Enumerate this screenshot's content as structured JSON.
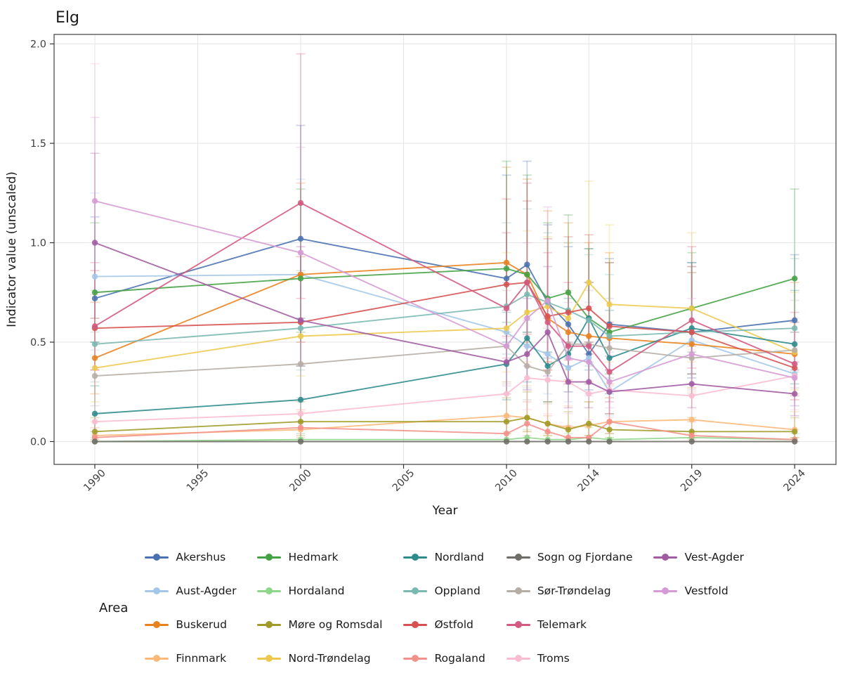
{
  "chart_data": {
    "type": "line",
    "title": "Elg",
    "xlabel": "Year",
    "ylabel": "Indicator value (unscaled)",
    "legend_title": "Area",
    "legend_position": "bottom",
    "grid": true,
    "xlim": [
      1988,
      2026
    ],
    "ylim": [
      -0.1,
      2.05
    ],
    "x_ticks": [
      1990,
      1995,
      2000,
      2005,
      2010,
      2014,
      2019,
      2024
    ],
    "y_ticks": [
      "0.0",
      "0.5",
      "1.0",
      "1.5",
      "2.0"
    ],
    "years": [
      1990,
      2000,
      2010,
      2011,
      2012,
      2013,
      2014,
      2015,
      2019,
      2024
    ],
    "error_bars": true,
    "colors": {
      "panel_border": "#4d4d4d",
      "gridline": "#e6e6e6",
      "tick_text": "#404040",
      "title_text": "#1a1a1a"
    },
    "series": [
      {
        "name": "Akershus",
        "color": "#4a72b0",
        "values": [
          0.72,
          1.02,
          0.82,
          0.89,
          0.7,
          0.59,
          0.44,
          0.59,
          0.55,
          0.61
        ],
        "err_lo": [
          0.5,
          0.62,
          0.5,
          0.55,
          0.42,
          0.38,
          0.26,
          0.36,
          0.32,
          0.36
        ],
        "err_hi": [
          1.13,
          1.59,
          1.34,
          1.41,
          1.09,
          0.98,
          0.8,
          0.92,
          0.9,
          0.94
        ]
      },
      {
        "name": "Aust-Agder",
        "color": "#a3c7e8",
        "values": [
          0.83,
          0.84,
          0.55,
          0.48,
          0.44,
          0.37,
          0.42,
          0.25,
          0.51,
          0.34
        ],
        "err_lo": [
          0.46,
          0.5,
          0.3,
          0.27,
          0.24,
          0.2,
          0.23,
          0.13,
          0.29,
          0.18
        ],
        "err_hi": [
          1.25,
          1.32,
          0.9,
          0.8,
          0.74,
          0.64,
          0.7,
          0.45,
          0.85,
          0.6
        ]
      },
      {
        "name": "Buskerud",
        "color": "#e8821e",
        "values": [
          0.42,
          0.84,
          0.9,
          0.84,
          0.62,
          0.55,
          0.53,
          0.52,
          0.49,
          0.44
        ],
        "err_lo": [
          0.24,
          0.5,
          0.55,
          0.5,
          0.36,
          0.31,
          0.3,
          0.29,
          0.27,
          0.24
        ],
        "err_hi": [
          0.7,
          1.3,
          1.38,
          1.32,
          1.16,
          1.1,
          1.0,
          0.95,
          0.85,
          0.8
        ]
      },
      {
        "name": "Finnmark",
        "color": "#fbb878",
        "values": [
          0.03,
          0.06,
          0.13,
          0.12,
          0.09,
          0.07,
          0.08,
          0.1,
          0.11,
          0.06
        ],
        "err_lo": [
          0.0,
          0.01,
          0.05,
          0.05,
          0.03,
          0.02,
          0.03,
          0.04,
          0.04,
          0.02
        ],
        "err_hi": [
          0.1,
          0.15,
          0.3,
          0.28,
          0.2,
          0.18,
          0.2,
          0.22,
          0.25,
          0.15
        ]
      },
      {
        "name": "Hedmark",
        "color": "#44a244",
        "values": [
          0.75,
          0.82,
          0.87,
          0.84,
          0.72,
          0.75,
          0.62,
          0.55,
          0.67,
          0.82
        ],
        "err_lo": [
          0.5,
          0.55,
          0.6,
          0.55,
          0.45,
          0.46,
          0.4,
          0.34,
          0.45,
          0.55
        ],
        "err_hi": [
          1.1,
          1.27,
          1.41,
          1.34,
          1.1,
          1.14,
          0.97,
          0.9,
          0.95,
          1.27
        ]
      },
      {
        "name": "Hordaland",
        "color": "#8ed68a",
        "values": [
          0.0,
          0.01,
          0.01,
          0.02,
          0.01,
          0.01,
          0.02,
          0.01,
          0.02,
          0.01
        ],
        "err_lo": [
          0.0,
          0.0,
          0.0,
          0.0,
          0.0,
          0.0,
          0.0,
          0.0,
          0.0,
          0.0
        ],
        "err_hi": [
          0.02,
          0.04,
          0.04,
          0.06,
          0.04,
          0.04,
          0.07,
          0.04,
          0.05,
          0.04
        ]
      },
      {
        "name": "Møre og Romsdal",
        "color": "#a09b28",
        "values": [
          0.05,
          0.1,
          0.1,
          0.12,
          0.09,
          0.06,
          0.09,
          0.06,
          0.05,
          0.05
        ],
        "err_lo": [
          0.01,
          0.03,
          0.04,
          0.05,
          0.03,
          0.02,
          0.03,
          0.02,
          0.02,
          0.02
        ],
        "err_hi": [
          0.12,
          0.2,
          0.22,
          0.25,
          0.2,
          0.15,
          0.2,
          0.14,
          0.12,
          0.12
        ]
      },
      {
        "name": "Nord-Trøndelag",
        "color": "#ecc94e",
        "values": [
          0.37,
          0.53,
          0.57,
          0.65,
          0.68,
          0.62,
          0.8,
          0.69,
          0.67,
          0.45
        ],
        "err_lo": [
          0.2,
          0.33,
          0.35,
          0.4,
          0.4,
          0.36,
          0.5,
          0.4,
          0.4,
          0.26
        ],
        "err_hi": [
          0.62,
          0.85,
          0.95,
          1.06,
          1.03,
          1.0,
          1.31,
          1.09,
          1.05,
          0.75
        ]
      },
      {
        "name": "Nordland",
        "color": "#2e8b8b",
        "values": [
          0.14,
          0.21,
          0.39,
          0.52,
          0.38,
          0.44,
          0.62,
          0.42,
          0.57,
          0.49
        ],
        "err_lo": [
          0.05,
          0.1,
          0.21,
          0.3,
          0.2,
          0.25,
          0.36,
          0.24,
          0.34,
          0.29
        ],
        "err_hi": [
          0.28,
          0.38,
          0.65,
          0.85,
          0.62,
          0.72,
          0.97,
          0.66,
          0.9,
          0.76
        ]
      },
      {
        "name": "Oppland",
        "color": "#7ab8b0",
        "values": [
          0.49,
          0.57,
          0.68,
          0.74,
          0.7,
          0.66,
          0.61,
          0.53,
          0.55,
          0.57
        ],
        "err_lo": [
          0.3,
          0.36,
          0.44,
          0.49,
          0.45,
          0.42,
          0.38,
          0.32,
          0.34,
          0.35
        ],
        "err_hi": [
          0.76,
          0.86,
          1.1,
          1.17,
          1.05,
          1.0,
          0.94,
          0.84,
          0.88,
          0.92
        ]
      },
      {
        "name": "Østfold",
        "color": "#d65151",
        "values": [
          0.57,
          0.6,
          0.79,
          0.8,
          0.63,
          0.65,
          0.67,
          0.58,
          0.55,
          0.37
        ],
        "err_lo": [
          0.36,
          0.39,
          0.53,
          0.54,
          0.4,
          0.41,
          0.44,
          0.36,
          0.34,
          0.21
        ],
        "err_hi": [
          0.86,
          0.93,
          1.22,
          1.21,
          1.02,
          1.03,
          1.04,
          0.9,
          0.88,
          0.6
        ]
      },
      {
        "name": "Rogaland",
        "color": "#f2918a",
        "values": [
          0.02,
          0.07,
          0.04,
          0.09,
          0.05,
          0.02,
          0.02,
          0.1,
          0.03,
          0.01
        ],
        "err_lo": [
          0.0,
          0.02,
          0.01,
          0.03,
          0.01,
          0.0,
          0.0,
          0.04,
          0.01,
          0.0
        ],
        "err_hi": [
          0.07,
          0.16,
          0.12,
          0.2,
          0.13,
          0.08,
          0.09,
          0.22,
          0.1,
          0.06
        ]
      },
      {
        "name": "Sogn og Fjordane",
        "color": "#6f6d68",
        "values": [
          0.0,
          0.0,
          0.0,
          0.0,
          0.0,
          0.0,
          0.0,
          0.0,
          0.0,
          0.0
        ],
        "err_lo": [
          0.0,
          0.0,
          0.0,
          0.0,
          0.0,
          0.0,
          0.0,
          0.0,
          0.0,
          0.0
        ],
        "err_hi": [
          0.01,
          0.01,
          0.01,
          0.01,
          0.01,
          0.01,
          0.01,
          0.01,
          0.01,
          0.01
        ]
      },
      {
        "name": "Sør-Trøndelag",
        "color": "#b6ada5",
        "values": [
          0.33,
          0.39,
          0.48,
          0.38,
          0.35,
          0.49,
          0.49,
          0.47,
          0.42,
          0.46
        ],
        "err_lo": [
          0.18,
          0.22,
          0.29,
          0.21,
          0.19,
          0.29,
          0.29,
          0.28,
          0.24,
          0.27
        ],
        "err_hi": [
          0.55,
          0.62,
          0.76,
          0.61,
          0.57,
          0.76,
          0.76,
          0.72,
          0.66,
          0.71
        ]
      },
      {
        "name": "Telemark",
        "color": "#d25980",
        "values": [
          0.58,
          1.2,
          0.67,
          0.8,
          0.6,
          0.48,
          0.48,
          0.35,
          0.61,
          0.39
        ],
        "err_lo": [
          0.36,
          0.72,
          0.42,
          0.48,
          0.36,
          0.29,
          0.29,
          0.2,
          0.37,
          0.23
        ],
        "err_hi": [
          0.9,
          1.95,
          1.05,
          1.3,
          0.95,
          0.8,
          0.8,
          0.6,
          0.98,
          0.65
        ]
      },
      {
        "name": "Troms",
        "color": "#f9bcd0",
        "values": [
          0.1,
          0.14,
          0.24,
          0.32,
          0.31,
          0.3,
          0.24,
          0.26,
          0.23,
          0.33
        ],
        "err_lo": [
          0.01,
          0.04,
          0.11,
          0.16,
          0.14,
          0.14,
          0.11,
          0.12,
          0.1,
          0.16
        ],
        "err_hi": [
          1.9,
          0.5,
          0.52,
          0.62,
          0.58,
          0.57,
          0.5,
          0.52,
          0.46,
          0.62
        ]
      },
      {
        "name": "Vest-Agder",
        "color": "#a05ba2",
        "values": [
          1.0,
          0.61,
          0.4,
          0.44,
          0.55,
          0.3,
          0.3,
          0.25,
          0.29,
          0.24
        ],
        "err_lo": [
          0.62,
          0.38,
          0.24,
          0.26,
          0.33,
          0.17,
          0.17,
          0.14,
          0.17,
          0.13
        ],
        "err_hi": [
          1.45,
          0.98,
          0.66,
          0.72,
          0.88,
          0.5,
          0.5,
          0.43,
          0.48,
          0.4
        ]
      },
      {
        "name": "Vestfold",
        "color": "#d69bd4",
        "values": [
          1.21,
          0.95,
          0.48,
          0.62,
          0.71,
          0.42,
          0.4,
          0.3,
          0.44,
          0.32
        ],
        "err_lo": [
          0.74,
          0.57,
          0.28,
          0.38,
          0.44,
          0.25,
          0.24,
          0.17,
          0.26,
          0.18
        ],
        "err_hi": [
          1.63,
          1.48,
          0.8,
          1.0,
          1.18,
          0.7,
          0.68,
          0.52,
          0.72,
          0.55
        ]
      }
    ]
  }
}
